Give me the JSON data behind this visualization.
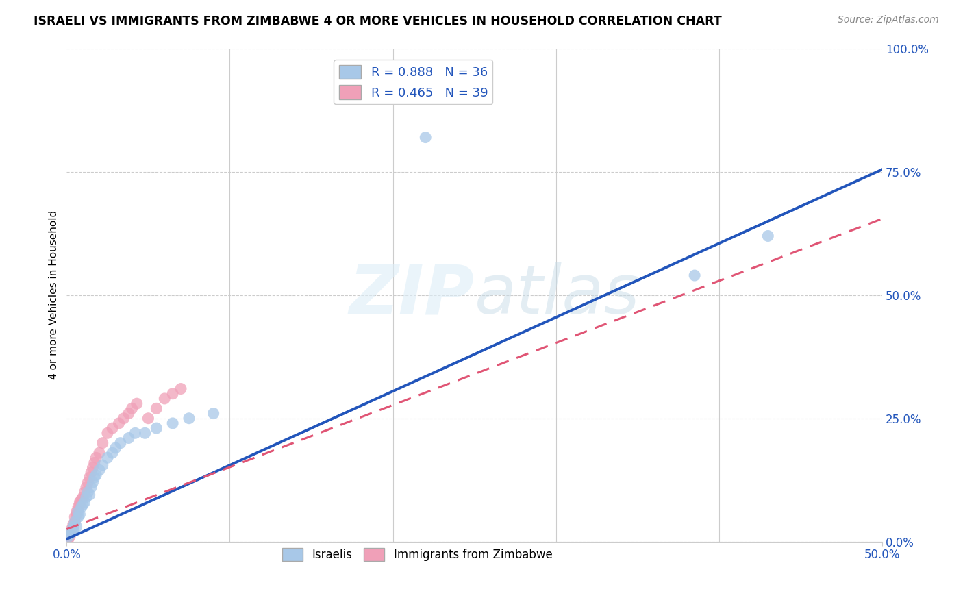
{
  "title": "ISRAELI VS IMMIGRANTS FROM ZIMBABWE 4 OR MORE VEHICLES IN HOUSEHOLD CORRELATION CHART",
  "source": "Source: ZipAtlas.com",
  "ylabel_text": "4 or more Vehicles in Household",
  "y_ticks": [
    0.0,
    0.25,
    0.5,
    0.75,
    1.0
  ],
  "y_tick_labels": [
    "0.0%",
    "25.0%",
    "50.0%",
    "75.0%",
    "100.0%"
  ],
  "xlim": [
    0.0,
    0.5
  ],
  "ylim": [
    0.0,
    1.0
  ],
  "blue_R": 0.888,
  "blue_N": 36,
  "pink_R": 0.465,
  "pink_N": 39,
  "blue_color": "#a8c8e8",
  "blue_line_color": "#2255bb",
  "pink_color": "#f0a0b8",
  "pink_line_color": "#e05575",
  "legend_label_blue": "Israelis",
  "legend_label_pink": "Immigrants from Zimbabwe",
  "watermark_zip": "ZIP",
  "watermark_atlas": "atlas",
  "blue_line_x0": 0.0,
  "blue_line_y0": 0.005,
  "blue_line_x1": 0.5,
  "blue_line_y1": 0.755,
  "pink_line_x0": 0.0,
  "pink_line_y0": 0.025,
  "pink_line_x1": 0.5,
  "pink_line_y1": 0.655,
  "blue_scatter_x": [
    0.001,
    0.002,
    0.003,
    0.004,
    0.004,
    0.005,
    0.006,
    0.007,
    0.007,
    0.008,
    0.009,
    0.01,
    0.011,
    0.012,
    0.013,
    0.014,
    0.015,
    0.016,
    0.017,
    0.018,
    0.02,
    0.022,
    0.025,
    0.028,
    0.03,
    0.033,
    0.038,
    0.042,
    0.048,
    0.055,
    0.065,
    0.075,
    0.09,
    0.22,
    0.385,
    0.43
  ],
  "blue_scatter_y": [
    0.01,
    0.015,
    0.02,
    0.025,
    0.03,
    0.04,
    0.03,
    0.05,
    0.06,
    0.055,
    0.07,
    0.075,
    0.08,
    0.09,
    0.1,
    0.095,
    0.11,
    0.12,
    0.13,
    0.135,
    0.145,
    0.155,
    0.17,
    0.18,
    0.19,
    0.2,
    0.21,
    0.22,
    0.22,
    0.23,
    0.24,
    0.25,
    0.26,
    0.82,
    0.54,
    0.62
  ],
  "pink_scatter_x": [
    0.001,
    0.002,
    0.002,
    0.003,
    0.003,
    0.004,
    0.004,
    0.005,
    0.005,
    0.006,
    0.006,
    0.007,
    0.007,
    0.008,
    0.008,
    0.009,
    0.01,
    0.011,
    0.012,
    0.013,
    0.014,
    0.015,
    0.016,
    0.017,
    0.018,
    0.02,
    0.022,
    0.025,
    0.028,
    0.032,
    0.035,
    0.038,
    0.04,
    0.043,
    0.05,
    0.055,
    0.06,
    0.065,
    0.07
  ],
  "pink_scatter_y": [
    0.005,
    0.01,
    0.015,
    0.02,
    0.025,
    0.03,
    0.035,
    0.04,
    0.05,
    0.055,
    0.06,
    0.065,
    0.07,
    0.075,
    0.08,
    0.085,
    0.09,
    0.1,
    0.11,
    0.12,
    0.13,
    0.14,
    0.15,
    0.16,
    0.17,
    0.18,
    0.2,
    0.22,
    0.23,
    0.24,
    0.25,
    0.26,
    0.27,
    0.28,
    0.25,
    0.27,
    0.29,
    0.3,
    0.31
  ]
}
